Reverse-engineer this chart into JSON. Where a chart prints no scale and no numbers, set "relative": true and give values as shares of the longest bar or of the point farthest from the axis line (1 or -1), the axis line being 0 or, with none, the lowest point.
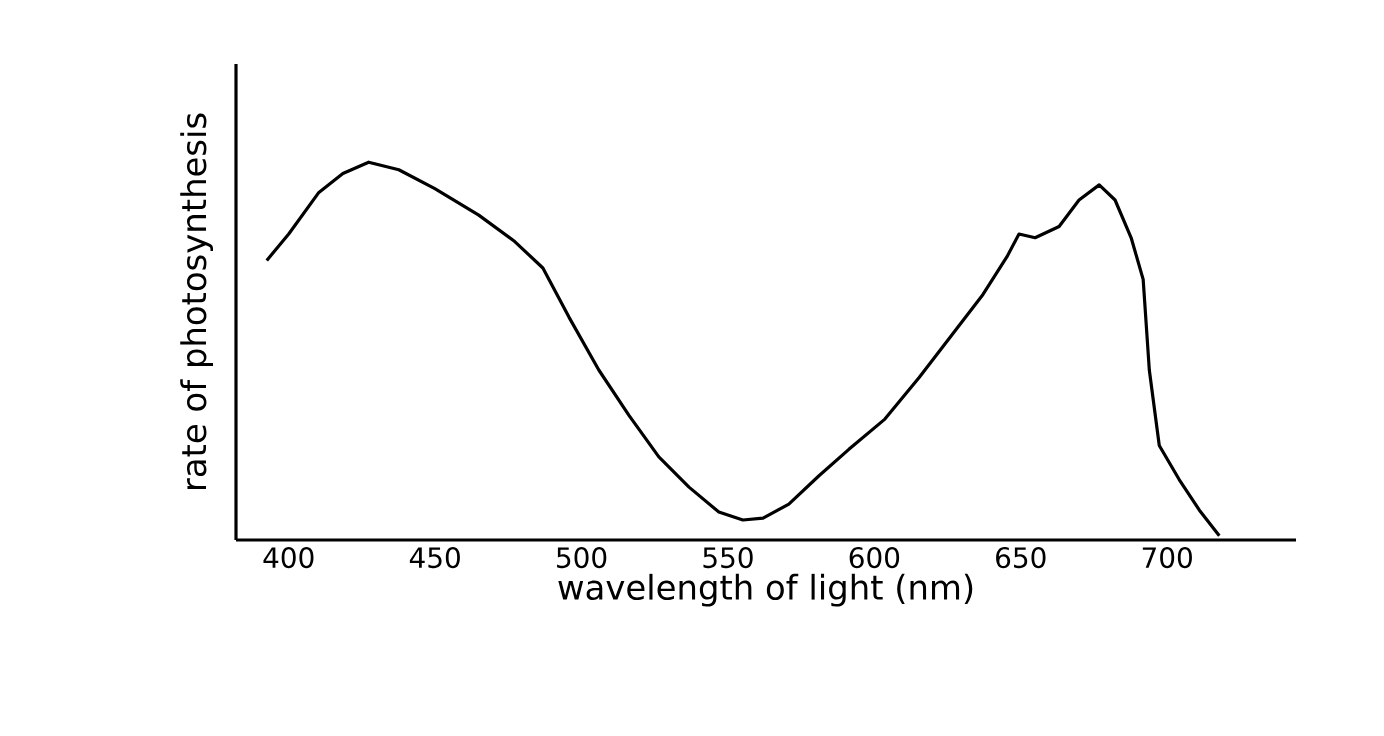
{
  "chart_data": {
    "type": "line",
    "xlabel": "wavelength of light (nm)",
    "ylabel": "rate of photosynthesis",
    "relative": true,
    "xlim": [
      382,
      744
    ],
    "xticks": [
      400,
      450,
      500,
      550,
      600,
      650,
      700
    ],
    "series": [
      {
        "color": "#000000",
        "x": [
          392.5,
          400,
          410.3,
          418.5,
          427.3,
          437.6,
          449.9,
          464.9,
          477.2,
          486.8,
          495.7,
          505.9,
          516.2,
          526.4,
          536.7,
          546.9,
          555.1,
          562,
          570.8,
          581.1,
          591.3,
          603.6,
          615.3,
          626.2,
          637.1,
          645.3,
          649.4,
          654.9,
          663.1,
          669.9,
          676.8,
          682.2,
          687.7,
          691.8,
          693.9,
          697.3,
          704.1,
          711,
          717.8
        ],
        "values": [
          0.74,
          0.81,
          0.92,
          0.97,
          1.0,
          0.98,
          0.93,
          0.86,
          0.79,
          0.72,
          0.59,
          0.45,
          0.33,
          0.22,
          0.14,
          0.074,
          0.053,
          0.058,
          0.095,
          0.17,
          0.24,
          0.32,
          0.43,
          0.54,
          0.65,
          0.75,
          0.81,
          0.8,
          0.83,
          0.9,
          0.94,
          0.9,
          0.8,
          0.69,
          0.45,
          0.25,
          0.16,
          0.079,
          0.011
        ]
      }
    ]
  }
}
